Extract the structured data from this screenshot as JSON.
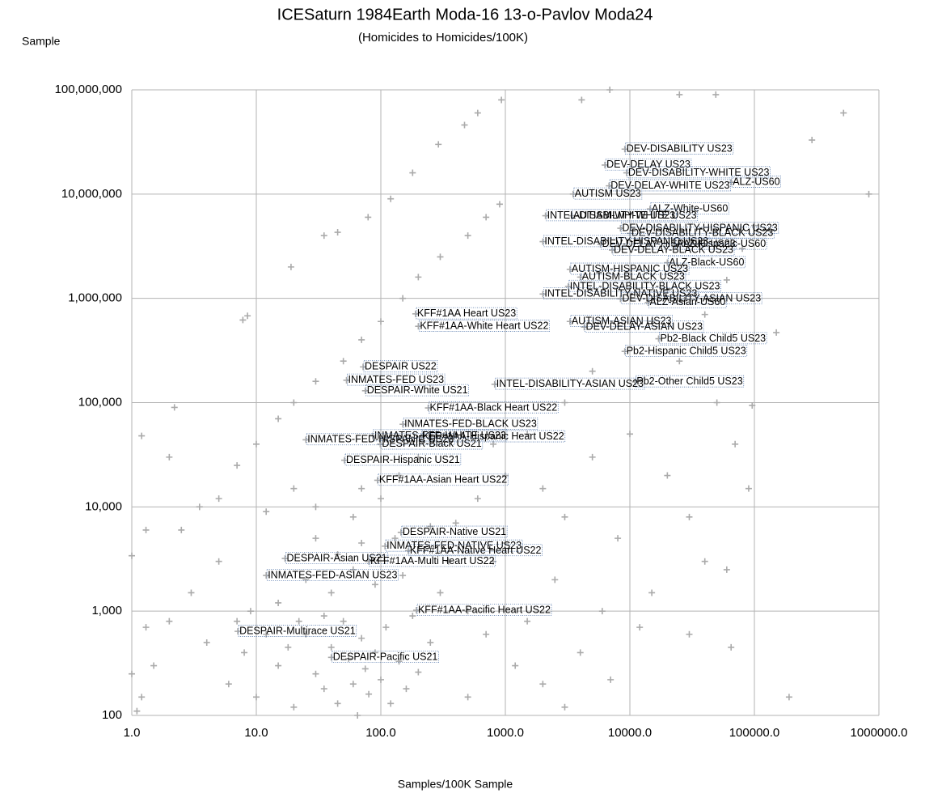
{
  "chart_data": {
    "type": "scatter",
    "title": "ICESaturn 1984Earth Moda-16 13-o-Pavlov Moda24",
    "subtitle": "(Homicides to Homicides/100K)",
    "y_label": "Sample",
    "x_label": "Samples/100K Sample",
    "xscale": "log",
    "yscale": "log",
    "grid": true,
    "color": "#aaaaaa",
    "xlim": [
      1,
      1000000
    ],
    "ylim": [
      100,
      100000000
    ],
    "xticks": [
      {
        "value": 1,
        "label": "1.0"
      },
      {
        "value": 10,
        "label": "10.0"
      },
      {
        "value": 100,
        "label": "100.0"
      },
      {
        "value": 1000,
        "label": "1000.0"
      },
      {
        "value": 10000,
        "label": "10000.0"
      },
      {
        "value": 100000,
        "label": "100000.0"
      },
      {
        "value": 1000000,
        "label": "1000000.0"
      }
    ],
    "yticks": [
      100,
      {
        "value": 1000,
        "label": "1,000"
      },
      {
        "value": 10000,
        "label": "10,000"
      },
      {
        "value": 100000,
        "label": "100,000"
      },
      {
        "value": 1000000,
        "label": "1,000,000"
      },
      {
        "value": 10000000,
        "label": "10,000,000"
      },
      {
        "value": 100000000,
        "label": "100,000,000"
      }
    ],
    "x": [
      7,
      10,
      15,
      20,
      30,
      50,
      70,
      100,
      150,
      200,
      300,
      500,
      700,
      900,
      7.8,
      8.5,
      45,
      79,
      120,
      290,
      600,
      930,
      19,
      35,
      180,
      470,
      4100,
      6900,
      25000,
      49000,
      520000,
      290000,
      830000,
      150000,
      96000,
      190000,
      65000,
      1000,
      2000,
      3000,
      5000,
      8000,
      10000,
      20000,
      30000,
      50000,
      40000,
      15000,
      6000,
      4000,
      2500,
      1500,
      800,
      600,
      400,
      300,
      250,
      500,
      1200,
      2000,
      7000,
      12000,
      30000,
      60000,
      90000,
      70000,
      25000,
      40000,
      60000,
      80000,
      100000,
      20000,
      15000,
      5000,
      3000,
      1500,
      800,
      200,
      100,
      60,
      30,
      20,
      12,
      5,
      3,
      2,
      1.5,
      1.2,
      1.1,
      1.3,
      1.0,
      4,
      6,
      8,
      10,
      15,
      20,
      25,
      30,
      35,
      40,
      45,
      50,
      55,
      60,
      65,
      70,
      75,
      80,
      90,
      100,
      110,
      120,
      140,
      160,
      180,
      200,
      15,
      25,
      40,
      60,
      90,
      150,
      35,
      22,
      18,
      12,
      9,
      7,
      45,
      70,
      130,
      250,
      350,
      500,
      700,
      1000,
      3000,
      30,
      70,
      140,
      2.5,
      1.3,
      3.5,
      5,
      1.0,
      2,
      1.2,
      2.2
    ],
    "y": [
      25000,
      40000,
      70000,
      100000,
      160000,
      250000,
      400000,
      600000,
      1000000,
      1600000,
      2500000,
      4000000,
      6000000,
      8000000,
      620000,
      680000,
      4300000,
      6000000,
      9000000,
      30000000,
      60000000,
      80000000,
      2000000,
      4000000,
      16000000,
      46000000,
      80000000,
      100000000,
      90000000,
      90000000,
      60000000,
      33000000,
      10000000,
      470000,
      94000,
      150,
      450,
      20000,
      15000,
      8000,
      30000,
      5000,
      50000,
      20000,
      8000,
      100000,
      3000,
      1500,
      1000,
      400,
      2000,
      800,
      3000,
      12000,
      7000,
      1500,
      500,
      150,
      300,
      200,
      220,
      700,
      600,
      2500,
      15000,
      40000,
      250000,
      700000,
      1500000,
      3000000,
      5000000,
      1200000,
      600000,
      200000,
      100000,
      50000,
      40000,
      30000,
      12000,
      8000,
      5000,
      15000,
      9000,
      3000,
      1500,
      800,
      300,
      150,
      110,
      700,
      250,
      500,
      200,
      400,
      150,
      300,
      120,
      600,
      250,
      180,
      450,
      130,
      800,
      350,
      200,
      100,
      550,
      280,
      160,
      400,
      220,
      700,
      130,
      330,
      180,
      900,
      260,
      1200,
      2000,
      1500,
      2500,
      1800,
      2200,
      900,
      800,
      450,
      600,
      1000,
      800,
      3500,
      4500,
      5000,
      6500,
      3000,
      1000,
      600,
      4500,
      120,
      10000,
      15000,
      20000,
      6000,
      6000,
      10000,
      12000,
      3400,
      30000,
      48000,
      90000
    ],
    "annotations": [
      {
        "text": "DEV-DISABILITY US23",
        "x": 9100,
        "y": 27000000
      },
      {
        "text": "DEV-DELAY US23",
        "x": 6300,
        "y": 19000000
      },
      {
        "text": "DEV-DISABILITY-WHITE US23",
        "x": 9400,
        "y": 16000000
      },
      {
        "text": "ALZ-US60",
        "x": 65000,
        "y": 13000000
      },
      {
        "text": "DEV-DELAY-WHITE US23",
        "x": 6800,
        "y": 12000000
      },
      {
        "text": "AUTISM US23",
        "x": 3500,
        "y": 10000000
      },
      {
        "text": "ALZ-White-US60",
        "x": 14500,
        "y": 7200000
      },
      {
        "text": "INTEL-DISABILITY-WHITE US23",
        "x": 2100,
        "y": 6200000
      },
      {
        "text": "AUTISM-WHITE US23",
        "x": 3400,
        "y": 6200000
      },
      {
        "text": "DEV-DISABILITY-HISPANIC US23",
        "x": 8400,
        "y": 4700000
      },
      {
        "text": "DEV-DISABILITY-BLACK US23",
        "x": 10000,
        "y": 4200000
      },
      {
        "text": "INTEL-DISABILITY-HISPANIC US23",
        "x": 2000,
        "y": 3500000
      },
      {
        "text": "DEV-DELAY-HISPANIC US23",
        "x": 5800,
        "y": 3300000
      },
      {
        "text": "ALZ-Hispanic-US60",
        "x": 23000,
        "y": 3300000
      },
      {
        "text": "DEV-DELAY-BLACK US23",
        "x": 7200,
        "y": 2900000
      },
      {
        "text": "ALZ-Black-US60",
        "x": 20000,
        "y": 2200000
      },
      {
        "text": "AUTISM-HISPANIC US23",
        "x": 3300,
        "y": 1900000
      },
      {
        "text": "AUTISM-BLACK US23",
        "x": 4000,
        "y": 1600000
      },
      {
        "text": "INTEL-DISABILITY-BLACK US23",
        "x": 3200,
        "y": 1300000
      },
      {
        "text": "INTEL-DISABILITY-NATIVE US23",
        "x": 2000,
        "y": 1100000
      },
      {
        "text": "DEV-DISABILITY-ASIAN US23",
        "x": 8400,
        "y": 990000
      },
      {
        "text": "ALZ-Asian-US60",
        "x": 14000,
        "y": 910000
      },
      {
        "text": "KFF#1AA Heart US23",
        "x": 190,
        "y": 710000
      },
      {
        "text": "AUTISM-ASIAN US23",
        "x": 3300,
        "y": 600000
      },
      {
        "text": "KFF#1AA-White Heart US22",
        "x": 200,
        "y": 540000
      },
      {
        "text": "DEV-DELAY-ASIAN US23",
        "x": 4300,
        "y": 530000
      },
      {
        "text": "Pb2-Black Child5 US23",
        "x": 17000,
        "y": 410000
      },
      {
        "text": "Pb2-Hispanic Child5 US23",
        "x": 9100,
        "y": 310000
      },
      {
        "text": "DESPAIR US22",
        "x": 72,
        "y": 220000
      },
      {
        "text": "INMATES-FED US23",
        "x": 53,
        "y": 164000
      },
      {
        "text": "INTEL-DISABILITY-ASIAN US23",
        "x": 820,
        "y": 150000
      },
      {
        "text": "Pb2-Other Child5 US23",
        "x": 11000,
        "y": 158000
      },
      {
        "text": "DESPAIR-White US21",
        "x": 75,
        "y": 130000
      },
      {
        "text": "KFF#1AA-Black Heart US22",
        "x": 240,
        "y": 89000
      },
      {
        "text": "INMATES-FED-BLACK US23",
        "x": 150,
        "y": 62000
      },
      {
        "text": "INMATES-FED-WHITE US23",
        "x": 86,
        "y": 48000
      },
      {
        "text": "KFF#1AA-Hispanic Heart US22",
        "x": 210,
        "y": 47000
      },
      {
        "text": "INMATES-FED-HISPANIC US23",
        "x": 25,
        "y": 44000
      },
      {
        "text": "DESPAIR-Black US21",
        "x": 99,
        "y": 40000
      },
      {
        "text": "DESPAIR-Hispanic US21",
        "x": 51,
        "y": 28000
      },
      {
        "text": "KFF#1AA-Asian Heart US22",
        "x": 94,
        "y": 18000
      },
      {
        "text": "DESPAIR-Native US21",
        "x": 145,
        "y": 5700
      },
      {
        "text": "INMATES-FED-NATIVE US23",
        "x": 108,
        "y": 4200
      },
      {
        "text": "KFF#1AA-Native Heart US22",
        "x": 166,
        "y": 3800
      },
      {
        "text": "DESPAIR-Asian US21",
        "x": 17,
        "y": 3200
      },
      {
        "text": "KFF#1AA-Multi Heart US22",
        "x": 80,
        "y": 3000
      },
      {
        "text": "INMATES-FED-ASIAN US23",
        "x": 12,
        "y": 2200
      },
      {
        "text": "KFF#1AA-Pacific Heart US22",
        "x": 193,
        "y": 1020
      },
      {
        "text": "DESPAIR-Multirace US21",
        "x": 7.1,
        "y": 640
      },
      {
        "text": "DESPAIR-Pacific US21",
        "x": 40,
        "y": 360
      }
    ]
  }
}
